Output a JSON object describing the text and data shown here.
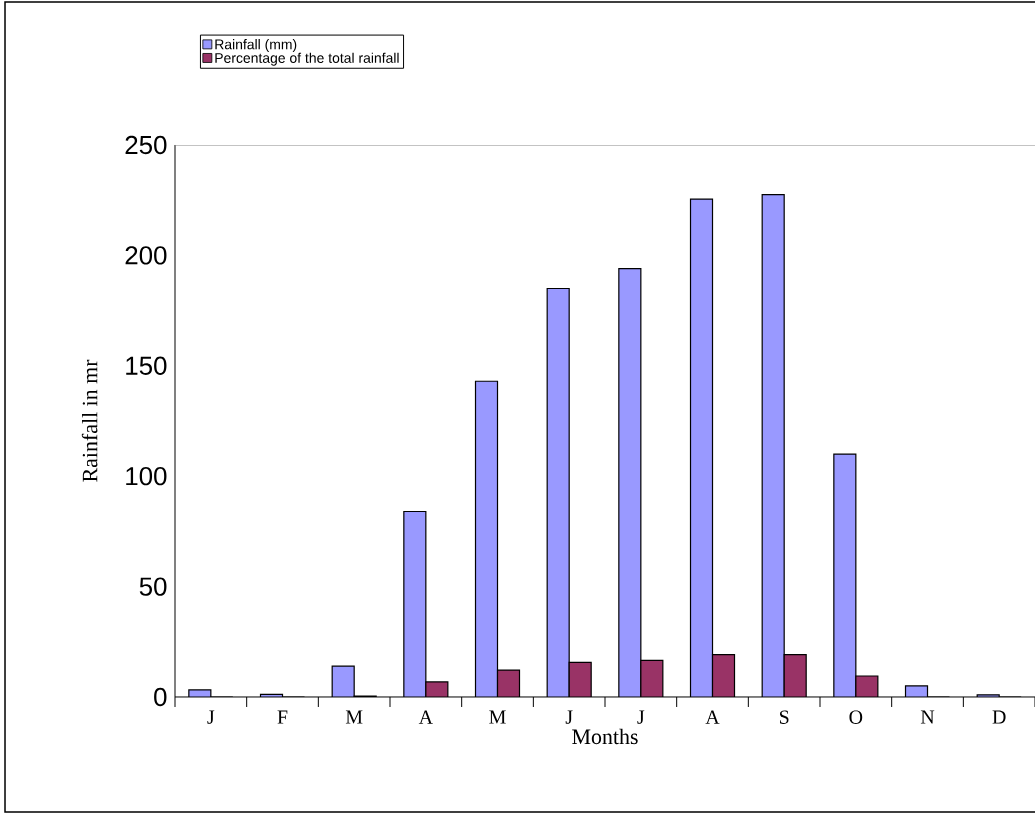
{
  "chart_data": {
    "type": "bar",
    "xlabel": "Months",
    "ylabel": "Rainfall in mr",
    "categories": [
      "J",
      "F",
      "M",
      "A",
      "M",
      "J",
      "J",
      "A",
      "S",
      "O",
      "N",
      "D"
    ],
    "series": [
      {
        "name": "Rainfall (mm)",
        "color": "#9999ff",
        "values": [
          3.2,
          1.2,
          14,
          84,
          143,
          185,
          194,
          225.5,
          227.5,
          110,
          5,
          1
        ]
      },
      {
        "name": "Percentage of the total rainfall",
        "color": "#993366",
        "values": [
          0,
          0,
          0.4,
          6.8,
          12.2,
          15.7,
          16.6,
          19.2,
          19.2,
          9.5,
          0,
          0
        ]
      }
    ],
    "ylim": [
      0,
      250
    ],
    "yticks": [
      0,
      50,
      100,
      150,
      200,
      250
    ],
    "grid": false,
    "legend": "top left"
  }
}
